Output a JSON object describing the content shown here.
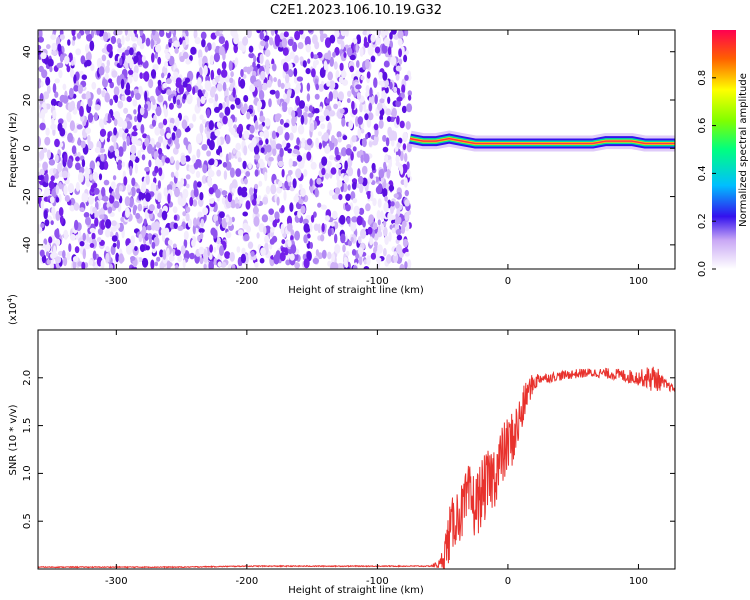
{
  "title": "C2E1.2023.106.10.19.G32",
  "colors": {
    "snr_line": "#e8322d",
    "axis": "#000000",
    "speckle": "#7a1cf0",
    "ridge": "#ff3050"
  },
  "chart_data": [
    {
      "type": "heatmap",
      "xlabel": "Height of straight line (km)",
      "ylabel": "Frequency (Hz)",
      "xlim": [
        -360,
        128
      ],
      "ylim": [
        -50,
        49
      ],
      "xticks": [
        -300,
        -200,
        -100,
        0,
        100
      ],
      "xtick_labels": [
        "-300",
        "-200",
        "-100",
        "0",
        "100"
      ],
      "yticks": [
        -40,
        -20,
        0,
        20,
        40
      ],
      "ytick_labels": [
        "-40",
        "-20",
        "0",
        "20",
        "40"
      ],
      "noise_region_x": [
        -360,
        -75
      ],
      "ridge": {
        "x": [
          -75,
          -65,
          -55,
          -45,
          -35,
          -25,
          -15,
          -5,
          5,
          25,
          45,
          65,
          75,
          85,
          95,
          105,
          115,
          128
        ],
        "freq": [
          4,
          3,
          3,
          4,
          3,
          2,
          2,
          2,
          2,
          2,
          2,
          2,
          3,
          3,
          3,
          2,
          2,
          2
        ]
      },
      "colorbar": {
        "label": "Normalized spectral amplitude",
        "range": [
          0.0,
          1.0
        ],
        "ticks": [
          0.0,
          0.2,
          0.4,
          0.6,
          0.8
        ],
        "tick_labels": [
          "0.0",
          "0.2",
          "0.4",
          "0.6",
          "0.8"
        ]
      }
    },
    {
      "type": "line",
      "xlabel": "Height of straight line (km)",
      "ylabel": "SNR (10 * v/v)",
      "y_multiplier": "(x10",
      "y_multiplier_exp": "4",
      "y_multiplier_close": ")",
      "xlim": [
        -360,
        128
      ],
      "ylim": [
        0,
        2.5
      ],
      "xticks": [
        -300,
        -200,
        -100,
        0,
        100
      ],
      "xtick_labels": [
        "-300",
        "-200",
        "-100",
        "0",
        "100"
      ],
      "yticks": [
        0.5,
        1.0,
        1.5,
        2.0
      ],
      "ytick_labels": [
        "0.5",
        "1.0",
        "1.5",
        "2.0"
      ],
      "series": [
        {
          "x": [
            -360,
            -300,
            -250,
            -200,
            -150,
            -100,
            -60,
            -52,
            -48,
            -45,
            -40,
            -35,
            -30,
            -25,
            -20,
            -15,
            -10,
            -5,
            0,
            5,
            10,
            15,
            20,
            25,
            30,
            40,
            50,
            60,
            70,
            80,
            90,
            100,
            105,
            110,
            115,
            120,
            128
          ],
          "values": [
            0.02,
            0.02,
            0.02,
            0.03,
            0.03,
            0.03,
            0.03,
            0.05,
            0.2,
            0.35,
            0.55,
            0.6,
            0.75,
            0.65,
            0.8,
            0.9,
            1.0,
            1.15,
            1.3,
            1.4,
            1.6,
            1.85,
            1.95,
            2.0,
            2.0,
            2.02,
            2.04,
            2.05,
            2.05,
            2.04,
            2.02,
            2.0,
            2.0,
            2.0,
            1.98,
            1.93,
            1.88
          ],
          "noise_amp": [
            0.005,
            0.005,
            0.005,
            0.005,
            0.005,
            0.005,
            0.005,
            0.05,
            0.2,
            0.3,
            0.3,
            0.3,
            0.35,
            0.35,
            0.35,
            0.35,
            0.35,
            0.35,
            0.3,
            0.3,
            0.25,
            0.15,
            0.1,
            0.06,
            0.05,
            0.05,
            0.05,
            0.05,
            0.05,
            0.06,
            0.07,
            0.08,
            0.1,
            0.15,
            0.12,
            0.06,
            0.03
          ]
        }
      ]
    }
  ]
}
